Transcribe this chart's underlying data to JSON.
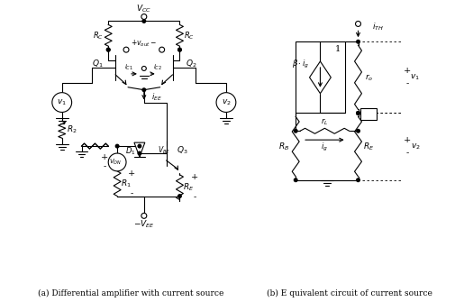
{
  "title_a": "(a) Differential amplifier with current source",
  "title_b": "(b) E quivalent circuit of current source",
  "bg_color": "#ffffff",
  "line_color": "#000000",
  "figsize": [
    5.05,
    3.35
  ],
  "dpi": 100
}
